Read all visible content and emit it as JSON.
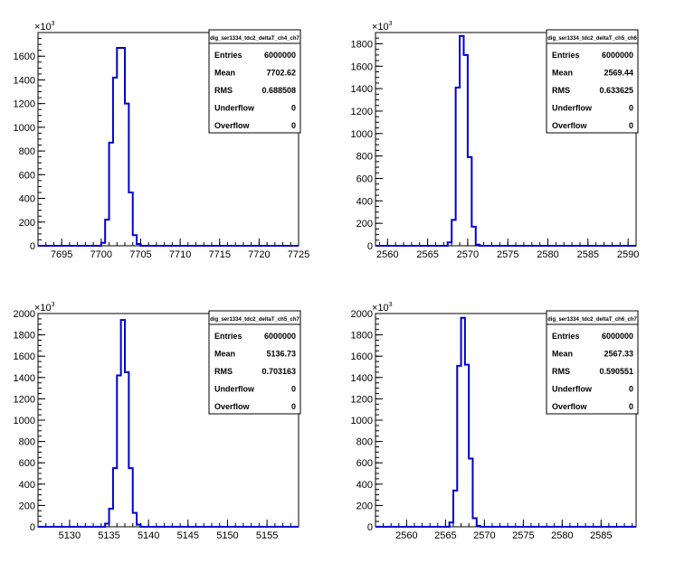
{
  "chart_data": [
    {
      "type": "histogram",
      "title": "dig_ser1334_tdc2_deltaT_ch4_ch7",
      "xlim": [
        7692,
        7725
      ],
      "ylim": [
        0,
        1800
      ],
      "y_multiplier_label": "×10",
      "y_multiplier_exponent": "3",
      "xticks": [
        7695,
        7700,
        7705,
        7710,
        7715,
        7720,
        7725
      ],
      "yticks": [
        0,
        200,
        400,
        600,
        800,
        1000,
        1200,
        1400,
        1600
      ],
      "bins": [
        {
          "x0": 7700.0,
          "x1": 7700.5,
          "y": 25
        },
        {
          "x0": 7700.5,
          "x1": 7701.0,
          "y": 220
        },
        {
          "x0": 7701.0,
          "x1": 7701.5,
          "y": 870
        },
        {
          "x0": 7701.5,
          "x1": 7702.0,
          "y": 1420
        },
        {
          "x0": 7702.0,
          "x1": 7703.0,
          "y": 1670
        },
        {
          "x0": 7703.0,
          "x1": 7703.5,
          "y": 1200
        },
        {
          "x0": 7703.5,
          "x1": 7704.0,
          "y": 450
        },
        {
          "x0": 7704.0,
          "x1": 7704.5,
          "y": 90
        },
        {
          "x0": 7704.5,
          "x1": 7705.0,
          "y": 15
        }
      ],
      "stats": {
        "Entries": "6000000",
        "Mean": "7702.62",
        "RMS": "0.688508",
        "Underflow": "0",
        "Overflow": "0"
      }
    },
    {
      "type": "histogram",
      "title": "dig_ser1334_tdc2_deltaT_ch5_ch6",
      "xlim": [
        2558.5,
        2591
      ],
      "ylim": [
        0,
        1900
      ],
      "y_multiplier_label": "×10",
      "y_multiplier_exponent": "3",
      "xticks": [
        2560,
        2565,
        2570,
        2575,
        2580,
        2585,
        2590
      ],
      "yticks": [
        0,
        200,
        400,
        600,
        800,
        1000,
        1200,
        1400,
        1600,
        1800
      ],
      "bins": [
        {
          "x0": 2567.5,
          "x1": 2568.0,
          "y": 30
        },
        {
          "x0": 2568.0,
          "x1": 2568.5,
          "y": 230
        },
        {
          "x0": 2568.5,
          "x1": 2569.0,
          "y": 1410
        },
        {
          "x0": 2569.0,
          "x1": 2569.5,
          "y": 1870
        },
        {
          "x0": 2569.5,
          "x1": 2570.0,
          "y": 1700
        },
        {
          "x0": 2570.0,
          "x1": 2570.5,
          "y": 790
        },
        {
          "x0": 2570.5,
          "x1": 2571.0,
          "y": 170
        },
        {
          "x0": 2571.0,
          "x1": 2571.5,
          "y": 10
        }
      ],
      "stats": {
        "Entries": "6000000",
        "Mean": "2569.44",
        "RMS": "0.633625",
        "Underflow": "0",
        "Overflow": "0"
      }
    },
    {
      "type": "histogram",
      "title": "dig_ser1334_tdc2_deltaT_ch5_ch7",
      "xlim": [
        5126,
        5159
      ],
      "ylim": [
        0,
        2000
      ],
      "y_multiplier_label": "×10",
      "y_multiplier_exponent": "3",
      "xticks": [
        5130,
        5135,
        5140,
        5145,
        5150,
        5155
      ],
      "yticks": [
        0,
        200,
        400,
        600,
        800,
        1000,
        1200,
        1400,
        1600,
        1800,
        2000
      ],
      "bins": [
        {
          "x0": 5134.5,
          "x1": 5135.0,
          "y": 30
        },
        {
          "x0": 5135.0,
          "x1": 5135.5,
          "y": 170
        },
        {
          "x0": 5135.5,
          "x1": 5136.0,
          "y": 550
        },
        {
          "x0": 5136.0,
          "x1": 5136.5,
          "y": 1420
        },
        {
          "x0": 5136.5,
          "x1": 5137.0,
          "y": 1940
        },
        {
          "x0": 5137.0,
          "x1": 5137.5,
          "y": 1450
        },
        {
          "x0": 5137.5,
          "x1": 5138.0,
          "y": 550
        },
        {
          "x0": 5138.0,
          "x1": 5138.5,
          "y": 130
        },
        {
          "x0": 5138.5,
          "x1": 5139.0,
          "y": 20
        }
      ],
      "stats": {
        "Entries": "6000000",
        "Mean": "5136.73",
        "RMS": "0.703163",
        "Underflow": "0",
        "Overflow": "0"
      }
    },
    {
      "type": "histogram",
      "title": "dig_ser1334_tdc2_deltaT_ch6_ch7",
      "xlim": [
        2556,
        2589.5
      ],
      "ylim": [
        0,
        2000
      ],
      "y_multiplier_label": "×10",
      "y_multiplier_exponent": "3",
      "xticks": [
        2560,
        2565,
        2570,
        2575,
        2580,
        2585
      ],
      "yticks": [
        0,
        200,
        400,
        600,
        800,
        1000,
        1200,
        1400,
        1600,
        1800,
        2000
      ],
      "bins": [
        {
          "x0": 2565.5,
          "x1": 2566.0,
          "y": 40
        },
        {
          "x0": 2566.0,
          "x1": 2566.5,
          "y": 340
        },
        {
          "x0": 2566.5,
          "x1": 2567.0,
          "y": 1510
        },
        {
          "x0": 2567.0,
          "x1": 2567.5,
          "y": 1960
        },
        {
          "x0": 2567.5,
          "x1": 2568.0,
          "y": 1520
        },
        {
          "x0": 2568.0,
          "x1": 2568.5,
          "y": 640
        },
        {
          "x0": 2568.5,
          "x1": 2569.0,
          "y": 80
        },
        {
          "x0": 2569.0,
          "x1": 2569.5,
          "y": 10
        }
      ],
      "stats": {
        "Entries": "6000000",
        "Mean": "2567.33",
        "RMS": "0.590551",
        "Underflow": "0",
        "Overflow": "0"
      }
    }
  ],
  "colors": {
    "histogram_line": "#0000cc",
    "axis": "#000000",
    "stat_box_border": "#000000",
    "background": "#ffffff"
  }
}
